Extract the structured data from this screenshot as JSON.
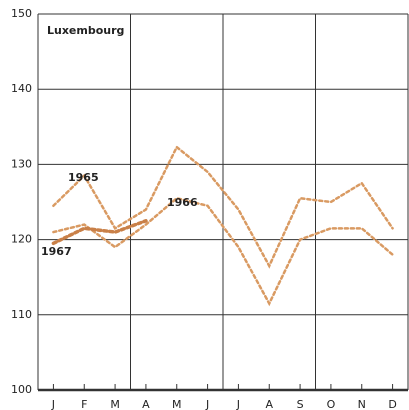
{
  "chart_data": {
    "type": "line",
    "title": "Luxembourg",
    "categories": [
      "J",
      "F",
      "M",
      "A",
      "M",
      "J",
      "J",
      "A",
      "S",
      "O",
      "N",
      "D"
    ],
    "series": [
      {
        "name": "1965",
        "color": "#d99a62",
        "values": [
          124.5,
          128.5,
          121.5,
          124,
          132.3,
          129,
          124,
          116.5,
          125.5,
          125,
          127.5,
          121.5
        ]
      },
      {
        "name": "1966",
        "color": "#d99a62",
        "values": [
          121,
          122,
          119,
          122,
          125.5,
          124.5,
          119,
          111.5,
          120,
          121.5,
          121.5,
          118
        ]
      },
      {
        "name": "1967",
        "color": "#c98048",
        "values": [
          119.5,
          121.5,
          121,
          122.5,
          null,
          null,
          null,
          null,
          null,
          null,
          null,
          null
        ]
      }
    ],
    "ylim": [
      100,
      150
    ],
    "yticks": [
      100,
      110,
      120,
      130,
      140,
      150
    ],
    "grid": true
  }
}
